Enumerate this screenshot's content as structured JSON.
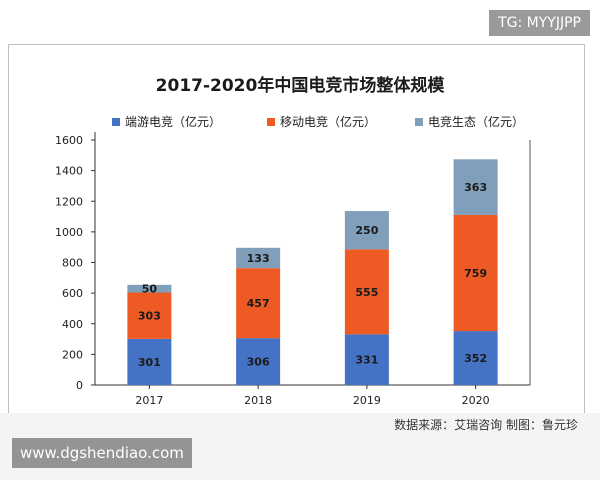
{
  "watermark_top": "TG: MYYJJPP",
  "watermark_bottom": "www.dgshendiao.com",
  "source_note": "数据来源：艾瑞咨询 制图：鲁元珍",
  "colors": {
    "series1": "#4472c4",
    "series2": "#ed5a24",
    "series3": "#7f9fba"
  },
  "chart_data": {
    "type": "bar",
    "stacked": true,
    "title": "2017-2020年中国电竞市场整体规模",
    "categories": [
      "2017",
      "2018",
      "2019",
      "2020"
    ],
    "series": [
      {
        "name": "端游电竞（亿元）",
        "values": [
          301,
          306,
          331,
          352
        ]
      },
      {
        "name": "移动电竞（亿元）",
        "values": [
          303,
          457,
          555,
          759
        ]
      },
      {
        "name": "电竞生态（亿元）",
        "values": [
          50,
          133,
          250,
          363
        ]
      }
    ],
    "ylim": [
      0,
      1600
    ],
    "yticks": [
      0,
      200,
      400,
      600,
      800,
      1000,
      1200,
      1400,
      1600
    ],
    "grid": false,
    "legend": "top"
  }
}
